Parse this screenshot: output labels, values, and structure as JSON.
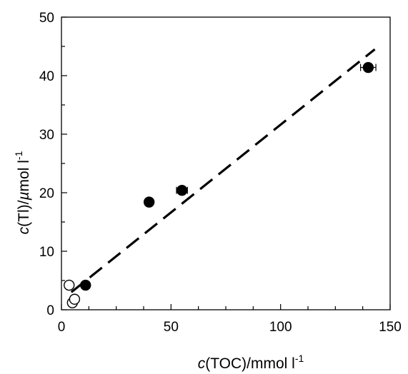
{
  "chart_data": {
    "type": "scatter",
    "title": "",
    "xlabel": {
      "var": "c",
      "text": "(TOC)/mmol l",
      "sup": "-1"
    },
    "ylabel": {
      "var": "c",
      "text": "(Tl)/",
      "mu": "µ",
      "unit": "mol l",
      "sup": "-1"
    },
    "xlim": [
      0,
      150
    ],
    "ylim": [
      0,
      50
    ],
    "xticks": [
      0,
      50,
      100,
      150
    ],
    "yticks": [
      0,
      10,
      20,
      30,
      40,
      50
    ],
    "grid": false,
    "legend": "none",
    "series": [
      {
        "marker": "filled-circle",
        "color": "#000000",
        "points": [
          {
            "x": 11,
            "y": 4.2,
            "xerr": 1
          },
          {
            "x": 40,
            "y": 18.4,
            "xerr": 1.5
          },
          {
            "x": 55,
            "y": 20.4,
            "xerr": 2.5
          },
          {
            "x": 140,
            "y": 41.4,
            "xerr": 3.5
          }
        ]
      },
      {
        "marker": "open-circle",
        "color": "#000000",
        "points": [
          {
            "x": 3.5,
            "y": 4.2,
            "xerr": 1.2
          },
          {
            "x": 5,
            "y": 1.2,
            "xerr": 0
          },
          {
            "x": 6,
            "y": 1.8,
            "xerr": 0
          }
        ]
      }
    ],
    "fit_line": {
      "style": "dashed",
      "color": "#000000",
      "x": [
        4.5,
        143
      ],
      "y": [
        3.0,
        44.5
      ]
    }
  }
}
